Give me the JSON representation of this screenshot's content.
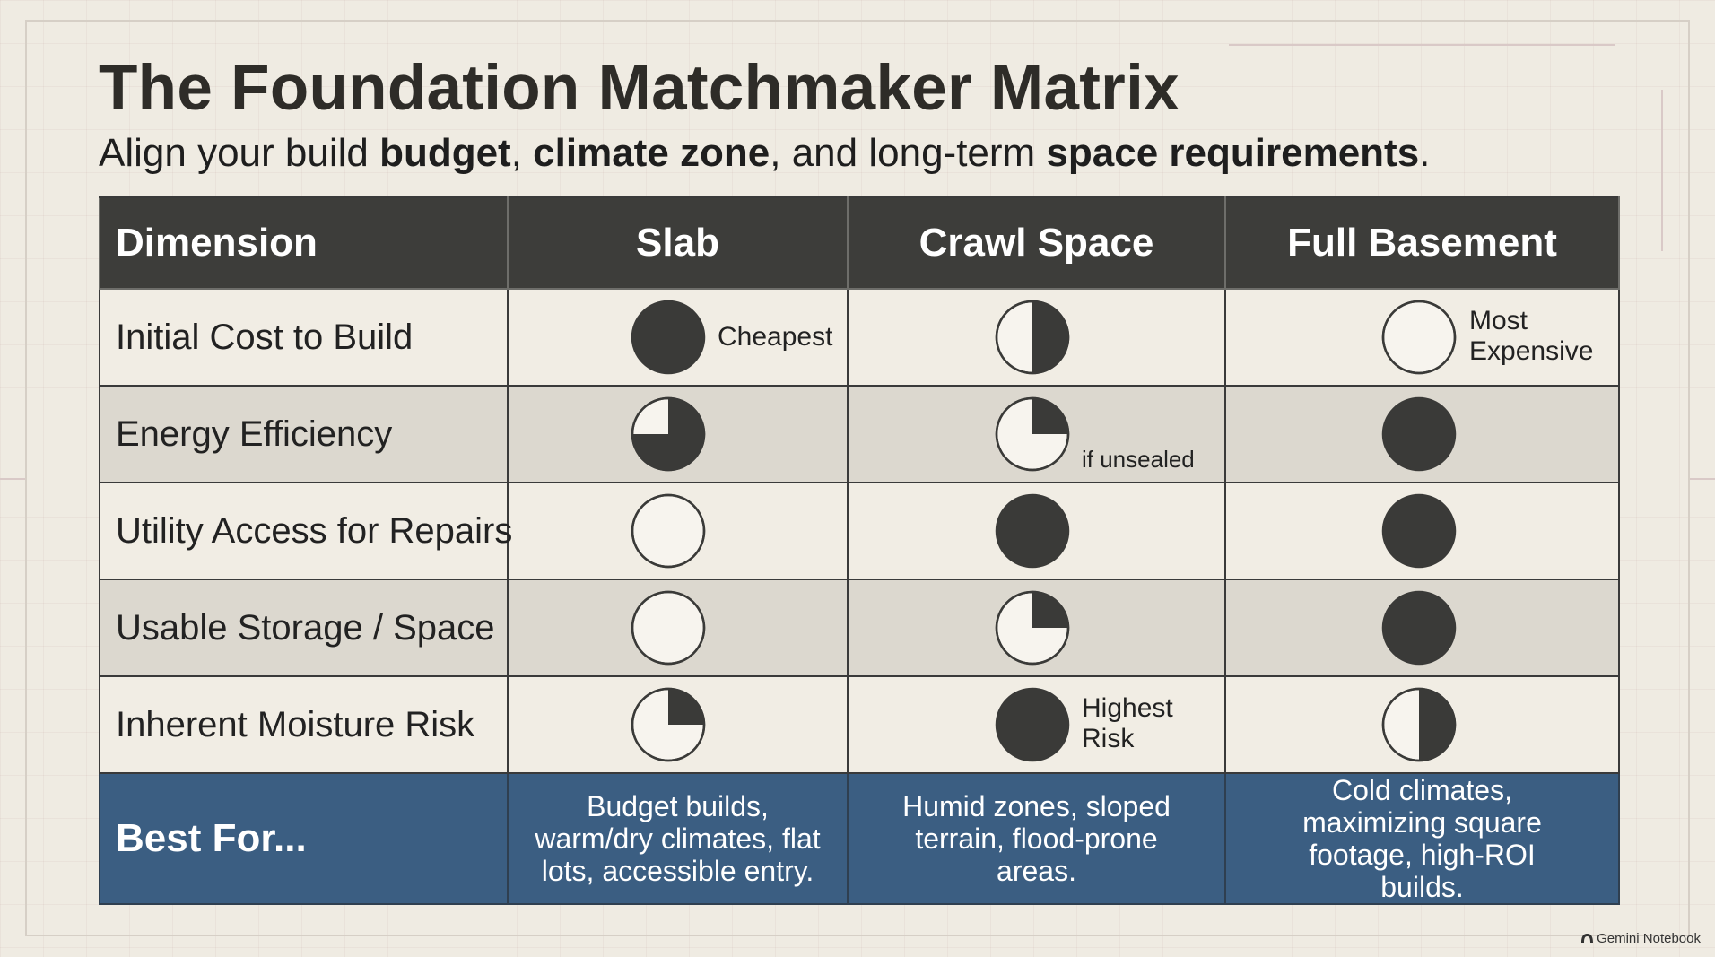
{
  "title": "The Foundation Matchmaker Matrix",
  "subtitle": {
    "part1": "Align your build ",
    "budget": "budget",
    "part2": ", ",
    "climate": "climate zone",
    "part3": ", and long-term ",
    "space": "space requirements",
    "part4": "."
  },
  "table": {
    "headers": [
      "Dimension",
      "Slab",
      "Crawl Space",
      "Full Basement"
    ],
    "rows": [
      {
        "label": "Initial Cost to Build",
        "ratings": [
          1,
          0.5,
          0
        ],
        "notes": [
          "Cheapest",
          "",
          "Most\nExpensive"
        ]
      },
      {
        "label": "Energy Efficiency",
        "ratings": [
          0.75,
          0.25,
          1
        ],
        "notes": [
          "",
          "if unsealed",
          ""
        ]
      },
      {
        "label": "Utility Access for Repairs",
        "ratings": [
          0,
          1,
          1
        ],
        "notes": [
          "",
          "",
          ""
        ]
      },
      {
        "label": "Usable Storage / Space",
        "ratings": [
          0,
          0.25,
          1
        ],
        "notes": [
          "",
          "",
          ""
        ]
      },
      {
        "label": "Inherent Moisture Risk",
        "ratings": [
          0.25,
          1,
          0.5
        ],
        "notes": [
          "",
          "Highest\nRisk",
          ""
        ]
      }
    ],
    "footer": {
      "label": "Best For...",
      "values": [
        "Budget builds, warm/dry climates, flat lots, accessible entry.",
        "Humid zones, sloped terrain, flood-prone areas.",
        "Cold climates, maximizing square footage, high-ROI builds."
      ]
    }
  },
  "brand": "Gemini Notebook",
  "colors": {
    "background": "#efebe2",
    "header": "#3d3d3a",
    "footer": "#3b5e82",
    "ball_fill": "#3a3a38",
    "row_alt": "#dcd8cf"
  }
}
